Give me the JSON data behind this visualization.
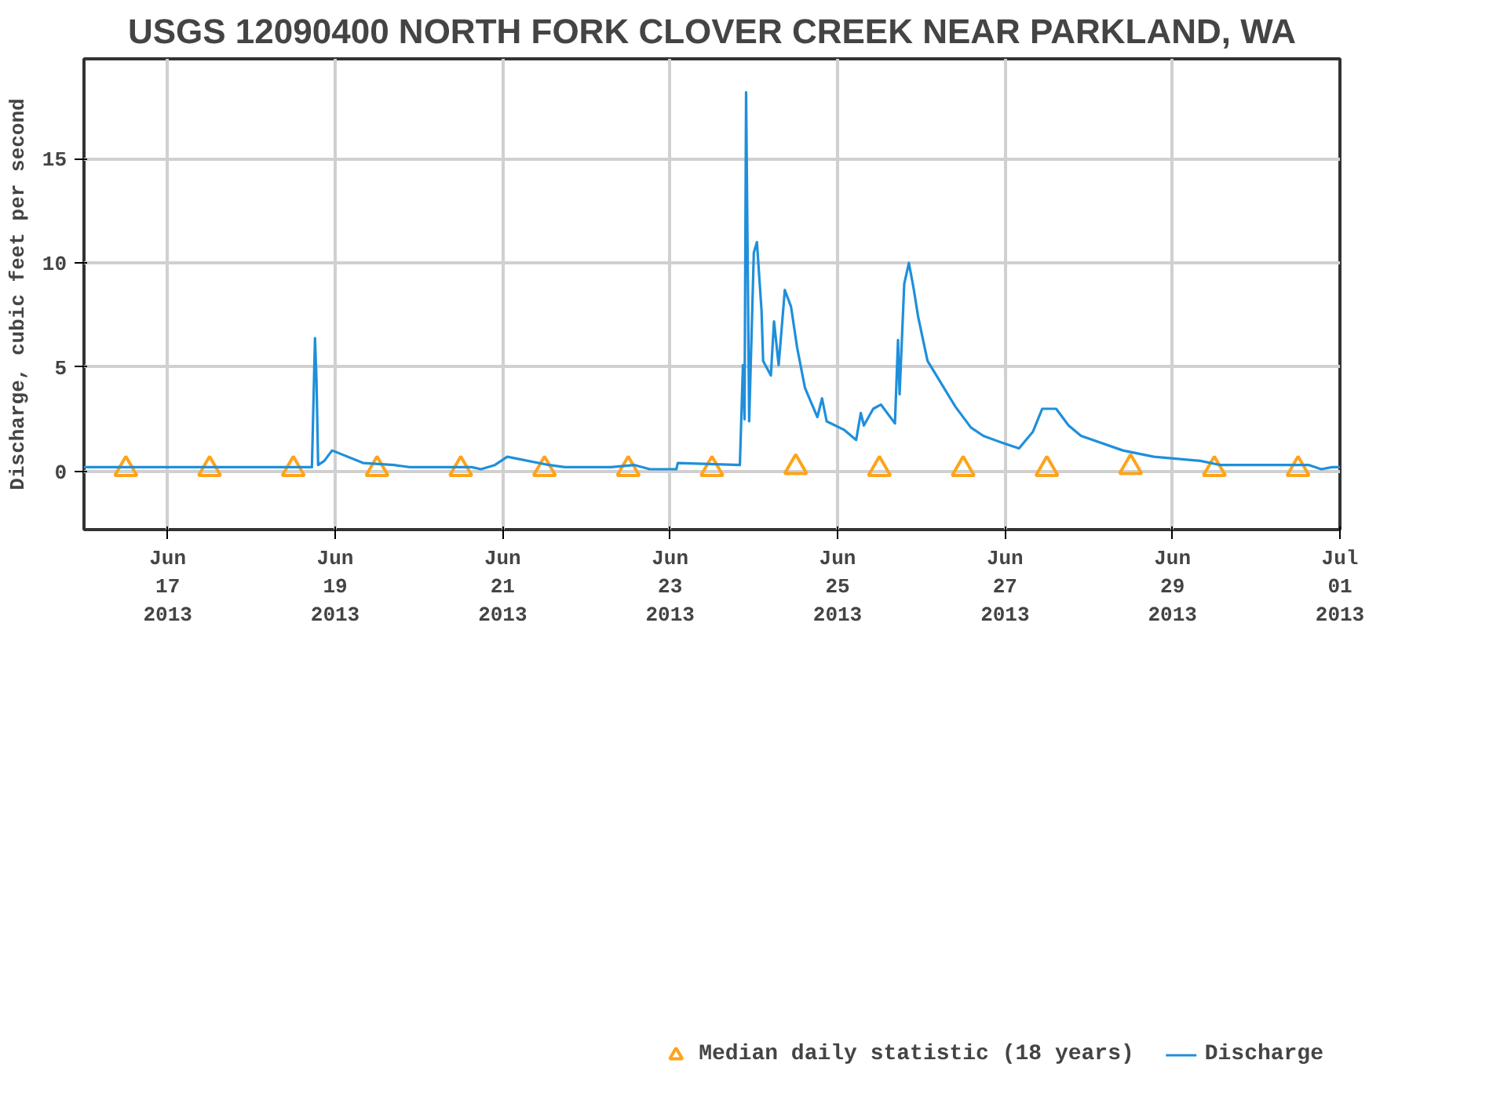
{
  "chart_data": {
    "type": "line",
    "title": "USGS 12090400 NORTH FORK CLOVER CREEK NEAR PARKLAND, WA",
    "ylabel": "Discharge, cubic feet per second",
    "xlim": [
      "2013-06-16T00:00",
      "2013-07-01T00:00"
    ],
    "ylim": [
      -2.8,
      19.8
    ],
    "yticks": [
      0,
      5,
      10,
      15
    ],
    "xticks": [
      {
        "value": "2013-06-17",
        "label": "Jun\n17\n2013"
      },
      {
        "value": "2013-06-19",
        "label": "Jun\n19\n2013"
      },
      {
        "value": "2013-06-21",
        "label": "Jun\n21\n2013"
      },
      {
        "value": "2013-06-23",
        "label": "Jun\n23\n2013"
      },
      {
        "value": "2013-06-25",
        "label": "Jun\n25\n2013"
      },
      {
        "value": "2013-06-27",
        "label": "Jun\n27\n2013"
      },
      {
        "value": "2013-06-29",
        "label": "Jun\n29\n2013"
      },
      {
        "value": "2013-07-01",
        "label": "Jul\n01\n2013"
      }
    ],
    "grid": true,
    "legend": "bottom",
    "series": [
      {
        "name": "Median daily statistic (18 years)",
        "type": "scatter",
        "marker": "triangle",
        "color": "#ffa31a",
        "x": [
          "2013-06-16T12:00",
          "2013-06-17T12:00",
          "2013-06-18T12:00",
          "2013-06-19T12:00",
          "2013-06-20T12:00",
          "2013-06-21T12:00",
          "2013-06-22T12:00",
          "2013-06-23T12:00",
          "2013-06-24T12:00",
          "2013-06-25T12:00",
          "2013-06-26T12:00",
          "2013-06-27T12:00",
          "2013-06-28T12:00",
          "2013-06-29T12:00",
          "2013-06-30T12:00"
        ],
        "values": [
          0.1,
          0.1,
          0.1,
          0.1,
          0.1,
          0.1,
          0.1,
          0.1,
          0.2,
          0.1,
          0.1,
          0.1,
          0.2,
          0.1,
          0.1
        ]
      },
      {
        "name": "Discharge",
        "line_style": "solid",
        "color": "#1f8fdb",
        "x": [
          "2013-06-16T00:00",
          "2013-06-18T17:20",
          "2013-06-18T18:13",
          "2013-06-18T18:40",
          "2013-06-18T19:07",
          "2013-06-18T20:53",
          "2013-06-18T23:07",
          "2013-06-19T08:00",
          "2013-06-19T16:53",
          "2013-06-19T21:20",
          "2013-06-20T15:07",
          "2013-06-20T17:47",
          "2013-06-20T21:47",
          "2013-06-21T01:20",
          "2013-06-21T13:20",
          "2013-06-21T17:47",
          "2013-06-22T07:07",
          "2013-06-22T13:47",
          "2013-06-22T18:13",
          "2013-06-23T01:47",
          "2013-06-23T02:13",
          "2013-06-23T20:00",
          "2013-06-23T20:53",
          "2013-06-23T21:20",
          "2013-06-23T21:47",
          "2013-06-23T22:40",
          "2013-06-24T00:00",
          "2013-06-24T00:53",
          "2013-06-24T02:13",
          "2013-06-24T02:40",
          "2013-06-24T04:53",
          "2013-06-24T05:47",
          "2013-06-24T07:07",
          "2013-06-24T08:53",
          "2013-06-24T10:40",
          "2013-06-24T12:27",
          "2013-06-24T14:40",
          "2013-06-24T18:13",
          "2013-06-24T19:33",
          "2013-06-24T20:53",
          "2013-06-25T01:47",
          "2013-06-25T05:20",
          "2013-06-25T06:40",
          "2013-06-25T07:33",
          "2013-06-25T10:13",
          "2013-06-25T12:27",
          "2013-06-25T16:27",
          "2013-06-25T17:20",
          "2013-06-25T17:47",
          "2013-06-25T19:07",
          "2013-06-25T20:27",
          "2013-06-25T21:47",
          "2013-06-25T23:07",
          "2013-06-26T01:47",
          "2013-06-26T05:47",
          "2013-06-26T09:47",
          "2013-06-26T14:13",
          "2013-06-26T17:47",
          "2013-06-26T22:40",
          "2013-06-27T04:00",
          "2013-06-27T08:00",
          "2013-06-27T10:40",
          "2013-06-27T14:40",
          "2013-06-27T18:13",
          "2013-06-27T21:47",
          "2013-06-28T09:47",
          "2013-06-28T18:40",
          "2013-06-29T08:00",
          "2013-06-29T13:47",
          "2013-06-30T15:07",
          "2013-06-30T18:40",
          "2013-06-30T21:47",
          "2013-07-01T00:00"
        ],
        "values": [
          0.2,
          0.2,
          6.4,
          4.2,
          0.3,
          0.5,
          1.0,
          0.4,
          0.3,
          0.2,
          0.2,
          0.1,
          0.3,
          0.7,
          0.3,
          0.2,
          0.2,
          0.3,
          0.1,
          0.1,
          0.4,
          0.3,
          5.1,
          2.5,
          18.2,
          2.4,
          10.5,
          11.0,
          7.7,
          5.3,
          4.6,
          7.2,
          5.1,
          8.7,
          7.9,
          5.9,
          4.0,
          2.6,
          3.5,
          2.4,
          2.0,
          1.5,
          2.8,
          2.2,
          3.0,
          3.2,
          2.3,
          6.3,
          3.7,
          9.0,
          10.0,
          8.8,
          7.4,
          5.3,
          4.2,
          3.1,
          2.1,
          1.7,
          1.4,
          1.1,
          1.9,
          3.0,
          3.0,
          2.2,
          1.7,
          1.0,
          0.7,
          0.5,
          0.3,
          0.3,
          0.1,
          0.2,
          0.2
        ]
      }
    ]
  }
}
